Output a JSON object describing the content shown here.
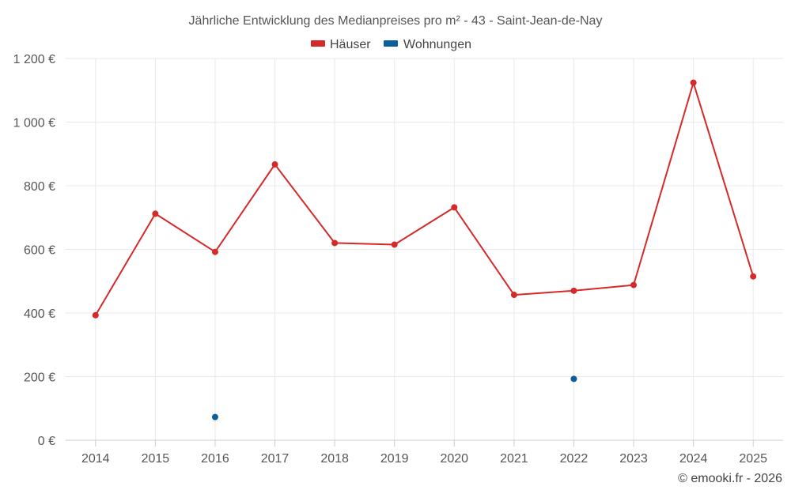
{
  "chart_data": {
    "type": "line",
    "title": "Jährliche Entwicklung des Medianpreises pro m² - 43 - Saint-Jean-de-Nay",
    "categories": [
      "2014",
      "2015",
      "2016",
      "2017",
      "2018",
      "2019",
      "2020",
      "2021",
      "2022",
      "2023",
      "2024",
      "2025"
    ],
    "series": [
      {
        "name": "Häuser",
        "color": "#d42a2a",
        "values": [
          393,
          712,
          592,
          867,
          620,
          615,
          732,
          457,
          470,
          488,
          1124,
          515
        ]
      },
      {
        "name": "Wohnungen",
        "color": "#0b5f9a",
        "values": [
          null,
          null,
          73,
          null,
          null,
          null,
          null,
          null,
          193,
          null,
          null,
          null
        ]
      }
    ],
    "y_ticks": [
      0,
      200,
      400,
      600,
      800,
      1000,
      1200
    ],
    "y_tick_labels": [
      "0 €",
      "200 €",
      "400 €",
      "600 €",
      "800 €",
      "1 000 €",
      "1 200 €"
    ],
    "ylim": [
      0,
      1200
    ],
    "grid": true,
    "legend": "top-center",
    "xlabel": "",
    "ylabel": ""
  },
  "credit": "© emooki.fr - 2026"
}
